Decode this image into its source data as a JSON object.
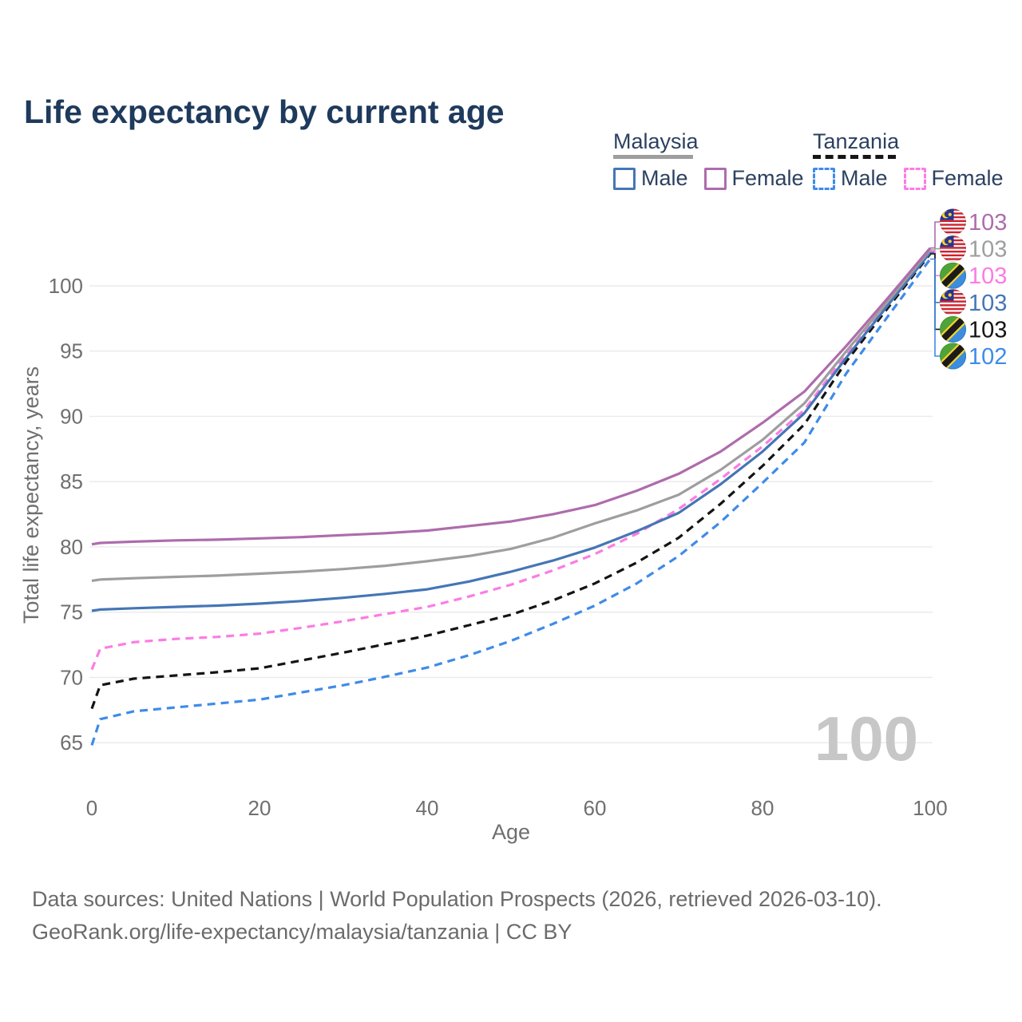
{
  "title": "Life expectancy by current age",
  "legend": {
    "groups": [
      {
        "name": "Malaysia",
        "line_style": "solid",
        "underline_color": "#9e9e9e",
        "entries": [
          {
            "label": "Male",
            "color": "#4576b5",
            "style": "solid"
          },
          {
            "label": "Female",
            "color": "#ae6cac",
            "style": "solid"
          }
        ]
      },
      {
        "name": "Tanzania",
        "line_style": "dashed",
        "underline_color": "#161616",
        "entries": [
          {
            "label": "Male",
            "color": "#3f8be8",
            "style": "dashed"
          },
          {
            "label": "Female",
            "color": "#fb7ce4",
            "style": "dashed"
          }
        ]
      }
    ]
  },
  "watermark": "100",
  "footer": {
    "line1": "Data sources: United Nations | World Population Prospects (2026, retrieved 2026-03-10).",
    "line2": "GeoRank.org/life-expectancy/malaysia/tanzania | CC BY"
  },
  "end_labels": [
    {
      "flag": "malaysia",
      "value": "103",
      "color": "#ae6cac"
    },
    {
      "flag": "malaysia",
      "value": "103",
      "color": "#9e9e9e"
    },
    {
      "flag": "tanzania",
      "value": "103",
      "color": "#fb7ce4"
    },
    {
      "flag": "malaysia",
      "value": "103",
      "color": "#4576b5"
    },
    {
      "flag": "tanzania",
      "value": "103",
      "color": "#141414"
    },
    {
      "flag": "tanzania",
      "value": "102",
      "color": "#3f8be8"
    }
  ],
  "chart_data": {
    "type": "line",
    "title": "Life expectancy by current age",
    "xlabel": "Age",
    "ylabel": "Total life expectancy, years",
    "xlim": [
      0,
      100
    ],
    "ylim": [
      63,
      104
    ],
    "x_ticks": [
      0,
      20,
      40,
      60,
      80,
      100
    ],
    "y_ticks": [
      65,
      70,
      75,
      80,
      85,
      90,
      95,
      100
    ],
    "grid": "horizontal",
    "legend_position": "top-right",
    "series": [
      {
        "id": "malaysia-female",
        "name": "Malaysia Female",
        "color": "#ae6cac",
        "dash": "solid",
        "label_row": 0,
        "end_label": "103",
        "points": [
          [
            0,
            80.2
          ],
          [
            1,
            80.3
          ],
          [
            5,
            80.4
          ],
          [
            10,
            80.5
          ],
          [
            15,
            80.55
          ],
          [
            20,
            80.65
          ],
          [
            25,
            80.75
          ],
          [
            30,
            80.9
          ],
          [
            35,
            81.05
          ],
          [
            40,
            81.25
          ],
          [
            45,
            81.6
          ],
          [
            50,
            81.95
          ],
          [
            55,
            82.5
          ],
          [
            60,
            83.2
          ],
          [
            65,
            84.3
          ],
          [
            70,
            85.6
          ],
          [
            75,
            87.3
          ],
          [
            80,
            89.5
          ],
          [
            85,
            91.9
          ],
          [
            90,
            95.4
          ],
          [
            95,
            99.1
          ],
          [
            100,
            102.9
          ]
        ]
      },
      {
        "id": "malaysia-all",
        "name": "Malaysia (both sexes)",
        "color": "#9e9e9e",
        "dash": "solid",
        "label_row": 1,
        "end_label": "103",
        "points": [
          [
            0,
            77.4
          ],
          [
            1,
            77.5
          ],
          [
            5,
            77.6
          ],
          [
            10,
            77.7
          ],
          [
            15,
            77.8
          ],
          [
            20,
            77.95
          ],
          [
            25,
            78.1
          ],
          [
            30,
            78.3
          ],
          [
            35,
            78.55
          ],
          [
            40,
            78.9
          ],
          [
            45,
            79.3
          ],
          [
            50,
            79.85
          ],
          [
            55,
            80.7
          ],
          [
            60,
            81.8
          ],
          [
            65,
            82.8
          ],
          [
            70,
            84.0
          ],
          [
            75,
            85.9
          ],
          [
            80,
            88.2
          ],
          [
            85,
            91.0
          ],
          [
            90,
            95.0
          ],
          [
            95,
            98.85
          ],
          [
            100,
            102.75
          ]
        ]
      },
      {
        "id": "malaysia-male",
        "name": "Malaysia Male",
        "color": "#4576b5",
        "dash": "solid",
        "label_row": 3,
        "end_label": "103",
        "points": [
          [
            0,
            75.1
          ],
          [
            1,
            75.2
          ],
          [
            5,
            75.3
          ],
          [
            10,
            75.4
          ],
          [
            15,
            75.5
          ],
          [
            20,
            75.65
          ],
          [
            25,
            75.85
          ],
          [
            30,
            76.1
          ],
          [
            35,
            76.4
          ],
          [
            40,
            76.75
          ],
          [
            45,
            77.35
          ],
          [
            50,
            78.1
          ],
          [
            55,
            78.95
          ],
          [
            60,
            79.95
          ],
          [
            65,
            81.2
          ],
          [
            70,
            82.6
          ],
          [
            75,
            84.8
          ],
          [
            80,
            87.3
          ],
          [
            85,
            90.25
          ],
          [
            90,
            94.5
          ],
          [
            95,
            98.55
          ],
          [
            100,
            102.55
          ]
        ]
      },
      {
        "id": "tanzania-female",
        "name": "Tanzania Female",
        "color": "#fb7ce4",
        "dash": "dashed",
        "label_row": 2,
        "end_label": "103",
        "points": [
          [
            0,
            70.6
          ],
          [
            1,
            72.2
          ],
          [
            5,
            72.7
          ],
          [
            10,
            72.95
          ],
          [
            15,
            73.1
          ],
          [
            20,
            73.35
          ],
          [
            25,
            73.8
          ],
          [
            30,
            74.3
          ],
          [
            35,
            74.85
          ],
          [
            40,
            75.4
          ],
          [
            45,
            76.2
          ],
          [
            50,
            77.1
          ],
          [
            55,
            78.2
          ],
          [
            60,
            79.45
          ],
          [
            65,
            81.0
          ],
          [
            70,
            82.9
          ],
          [
            75,
            85.2
          ],
          [
            80,
            87.7
          ],
          [
            85,
            90.5
          ],
          [
            90,
            94.75
          ],
          [
            95,
            98.7
          ],
          [
            100,
            102.65
          ]
        ]
      },
      {
        "id": "tanzania-all",
        "name": "Tanzania (both sexes)",
        "color": "#141414",
        "dash": "dashed",
        "label_row": 4,
        "end_label": "103",
        "points": [
          [
            0,
            67.6
          ],
          [
            1,
            69.4
          ],
          [
            5,
            69.9
          ],
          [
            10,
            70.15
          ],
          [
            15,
            70.4
          ],
          [
            20,
            70.7
          ],
          [
            25,
            71.3
          ],
          [
            30,
            71.9
          ],
          [
            35,
            72.55
          ],
          [
            40,
            73.2
          ],
          [
            45,
            74.0
          ],
          [
            50,
            74.8
          ],
          [
            55,
            75.9
          ],
          [
            60,
            77.2
          ],
          [
            65,
            78.8
          ],
          [
            70,
            80.7
          ],
          [
            75,
            83.3
          ],
          [
            80,
            86.2
          ],
          [
            85,
            89.4
          ],
          [
            90,
            94.2
          ],
          [
            95,
            98.35
          ],
          [
            100,
            102.45
          ]
        ]
      },
      {
        "id": "tanzania-male",
        "name": "Tanzania Male",
        "color": "#3f8be8",
        "dash": "dashed",
        "label_row": 5,
        "end_label": "102",
        "points": [
          [
            0,
            64.8
          ],
          [
            1,
            66.8
          ],
          [
            5,
            67.4
          ],
          [
            10,
            67.7
          ],
          [
            15,
            68.0
          ],
          [
            20,
            68.3
          ],
          [
            25,
            68.85
          ],
          [
            30,
            69.4
          ],
          [
            35,
            70.05
          ],
          [
            40,
            70.75
          ],
          [
            45,
            71.7
          ],
          [
            50,
            72.8
          ],
          [
            55,
            74.1
          ],
          [
            60,
            75.5
          ],
          [
            65,
            77.2
          ],
          [
            70,
            79.3
          ],
          [
            75,
            81.9
          ],
          [
            80,
            84.9
          ],
          [
            85,
            88.0
          ],
          [
            90,
            93.3
          ],
          [
            95,
            97.7
          ],
          [
            100,
            102.05
          ]
        ]
      }
    ]
  }
}
